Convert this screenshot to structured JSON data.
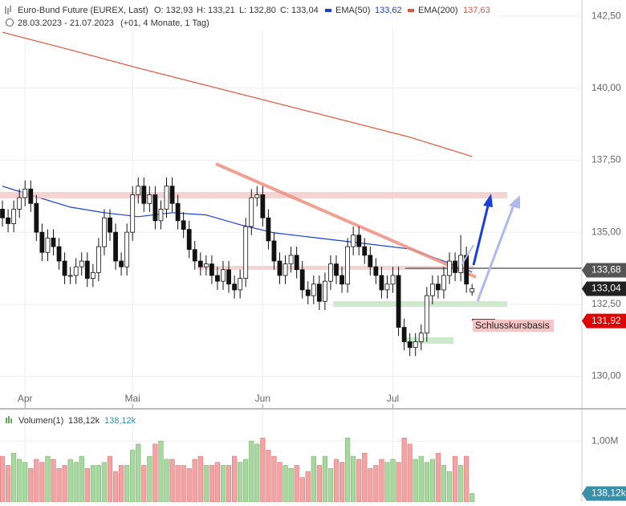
{
  "chart_data": {
    "type": "candlestick",
    "title": "Euro-Bund Future (EUREX, Last)",
    "ohlc": [
      "O: 132,93",
      "H: 133,21",
      "L: 132,80",
      "C: 133,04"
    ],
    "subtitle": "28.03.2023 - 21.07.2023",
    "period": "(+01, 4 Monate, 1 Tag)",
    "open": [
      135.8,
      135.5,
      135.3,
      135.8,
      136.2,
      136.5,
      136.0,
      135.0,
      134.3,
      134.8,
      134.5,
      134.0,
      133.5,
      133.5,
      133.8,
      134.0,
      133.4,
      133.6,
      134.5,
      135.5,
      135.0,
      134.0,
      133.8,
      135.0,
      136.3,
      136.6,
      136.0,
      136.3,
      135.4,
      135.8,
      136.6,
      136.0,
      135.4,
      135.1,
      134.4,
      134.0,
      133.8,
      133.9,
      133.5,
      133.3,
      133.7,
      133.2,
      133.0,
      133.4,
      135.2,
      136.2,
      136.3,
      135.5,
      134.7,
      134.0,
      133.5,
      133.9,
      134.2,
      133.7,
      133.0,
      132.8,
      133.2,
      132.6,
      133.3,
      133.9,
      133.5,
      133.2,
      134.5,
      134.9,
      134.5,
      134.2,
      133.8,
      133.5,
      133.0,
      133.2,
      133.5,
      131.7,
      131.2,
      131.0,
      131.2,
      131.5,
      132.8,
      133.2,
      133.0,
      133.5,
      134.0,
      133.6,
      134.2,
      132.93
    ],
    "high": [
      136.1,
      135.8,
      136.1,
      136.5,
      136.8,
      136.8,
      136.3,
      135.3,
      135.1,
      135.1,
      134.8,
      134.3,
      133.8,
      134.1,
      134.3,
      134.3,
      133.9,
      134.8,
      135.8,
      135.8,
      135.3,
      134.3,
      135.3,
      136.6,
      136.9,
      136.9,
      136.6,
      136.6,
      136.1,
      136.9,
      136.9,
      136.3,
      135.7,
      135.4,
      134.7,
      134.3,
      134.2,
      134.2,
      133.8,
      134.0,
      134.0,
      133.5,
      133.7,
      135.5,
      136.5,
      136.6,
      136.6,
      135.8,
      135.0,
      134.3,
      134.2,
      134.5,
      134.5,
      134.0,
      133.3,
      133.5,
      133.5,
      133.6,
      134.2,
      134.2,
      133.8,
      134.8,
      135.2,
      135.2,
      134.8,
      134.5,
      134.1,
      133.8,
      133.5,
      133.8,
      133.8,
      132.0,
      131.5,
      131.5,
      131.8,
      133.1,
      133.5,
      133.5,
      133.8,
      134.3,
      134.3,
      134.9,
      134.5,
      133.21
    ],
    "low": [
      135.2,
      135.0,
      135.0,
      135.5,
      135.9,
      135.7,
      134.7,
      134.0,
      134.0,
      134.2,
      133.7,
      133.2,
      133.2,
      133.2,
      133.5,
      133.1,
      133.1,
      133.3,
      134.2,
      134.7,
      133.7,
      133.5,
      133.5,
      134.7,
      136.0,
      135.7,
      135.7,
      135.1,
      135.1,
      135.5,
      135.7,
      135.1,
      134.8,
      134.1,
      133.7,
      133.5,
      133.5,
      133.2,
      133.0,
      133.0,
      132.9,
      132.7,
      132.7,
      133.1,
      134.9,
      135.9,
      135.2,
      134.4,
      133.7,
      133.2,
      133.2,
      133.6,
      133.4,
      132.7,
      132.5,
      132.5,
      132.3,
      132.3,
      133.0,
      133.2,
      132.9,
      132.9,
      134.2,
      134.2,
      133.9,
      133.5,
      133.2,
      132.7,
      132.7,
      132.9,
      131.4,
      130.9,
      130.7,
      130.7,
      130.9,
      131.2,
      132.5,
      132.7,
      132.7,
      133.2,
      133.3,
      133.3,
      132.9,
      132.8
    ],
    "close": [
      135.5,
      135.3,
      135.8,
      136.2,
      136.5,
      136.0,
      135.0,
      134.3,
      134.8,
      134.5,
      134.0,
      133.5,
      133.5,
      133.8,
      134.0,
      133.4,
      133.6,
      134.5,
      135.5,
      135.0,
      134.0,
      133.8,
      135.0,
      136.3,
      136.6,
      136.0,
      136.3,
      135.4,
      135.8,
      136.6,
      136.0,
      135.4,
      135.1,
      134.4,
      134.0,
      133.8,
      133.9,
      133.5,
      133.3,
      133.7,
      133.2,
      133.0,
      133.4,
      135.2,
      136.2,
      136.3,
      135.5,
      134.7,
      134.0,
      133.5,
      133.9,
      134.2,
      133.7,
      133.0,
      132.8,
      133.2,
      132.6,
      133.3,
      133.9,
      133.5,
      133.2,
      134.5,
      134.9,
      134.5,
      134.2,
      133.8,
      133.5,
      133.0,
      133.2,
      133.5,
      131.7,
      131.2,
      131.0,
      131.2,
      131.5,
      132.8,
      133.2,
      133.0,
      133.5,
      134.0,
      133.6,
      134.2,
      133.2,
      133.04
    ],
    "series": [
      {
        "name": "EMA(50)",
        "color": "#1a3fd6",
        "last_label": "133,62",
        "x": [
          0,
          6,
          12,
          18,
          24,
          30,
          36,
          42,
          48,
          54,
          60,
          66,
          72,
          78,
          83
        ],
        "values": [
          136.6,
          136.23,
          135.87,
          135.68,
          135.54,
          135.68,
          135.6,
          135.26,
          134.98,
          134.84,
          134.7,
          134.56,
          134.42,
          134.0,
          133.62
        ]
      },
      {
        "name": "EMA(200)",
        "color": "#e8503a",
        "last_label": "137,63",
        "x": [
          0,
          12,
          24,
          36,
          48,
          60,
          72,
          83
        ],
        "values": [
          141.94,
          141.33,
          140.7,
          140.1,
          139.5,
          138.9,
          138.3,
          137.63
        ]
      }
    ],
    "xlim": [
      -0.43,
      102.4
    ],
    "xticks": [
      {
        "value": 4,
        "label": "Apr"
      },
      {
        "value": 23,
        "label": "Mai"
      },
      {
        "value": 46,
        "label": "Jun"
      },
      {
        "value": 69,
        "label": "Jul"
      }
    ],
    "ylim": [
      128.9,
      143.06
    ],
    "yticks": [
      {
        "value": 130,
        "label": "130,00"
      },
      {
        "value": 132.5,
        "label": "132,50"
      },
      {
        "value": 135,
        "label": "135,00"
      },
      {
        "value": 137.5,
        "label": "137,50"
      },
      {
        "value": 140,
        "label": "140,00"
      },
      {
        "value": 142.5,
        "label": "142,50"
      }
    ],
    "grid": true,
    "price_markers": [
      {
        "value": 133.68,
        "label": "133,68",
        "color": "#555555"
      },
      {
        "value": 133.04,
        "label": "133,04",
        "color": "#222222"
      },
      {
        "value": 131.92,
        "label": "131,92",
        "color": "#e00000"
      }
    ],
    "annotation": "Schlusskursbasis",
    "volume": {
      "title": "Volumen(1)",
      "legend_values": [
        "138,12k",
        "138,12k"
      ],
      "values": [
        0.75,
        0.6,
        0.8,
        0.7,
        0.65,
        0.55,
        0.7,
        0.65,
        0.75,
        0.7,
        0.55,
        0.6,
        0.7,
        0.65,
        0.75,
        0.55,
        0.6,
        0.6,
        0.65,
        0.75,
        0.5,
        0.6,
        0.6,
        0.85,
        0.95,
        0.6,
        0.75,
        0.95,
        1.0,
        0.7,
        0.7,
        0.6,
        0.6,
        0.55,
        0.7,
        0.75,
        0.6,
        0.6,
        0.65,
        0.6,
        0.6,
        0.75,
        0.65,
        0.7,
        1.0,
        0.95,
        1.05,
        0.85,
        0.75,
        0.65,
        0.6,
        0.55,
        0.6,
        0.4,
        0.5,
        0.75,
        0.6,
        0.75,
        0.55,
        0.7,
        0.65,
        1.05,
        0.75,
        0.7,
        0.8,
        0.55,
        0.6,
        0.7,
        0.65,
        0.7,
        0.65,
        1.05,
        0.95,
        0.7,
        0.75,
        0.65,
        0.7,
        0.8,
        0.6,
        0.5,
        0.75,
        0.6,
        0.75,
        0.13812
      ],
      "ylim": [
        0,
        1.45
      ],
      "yticks": [
        {
          "value": 1,
          "label": "1,00M"
        }
      ],
      "marker": {
        "value": 0.13812,
        "label": "138,12k",
        "color": "#3a8fa8"
      }
    }
  }
}
